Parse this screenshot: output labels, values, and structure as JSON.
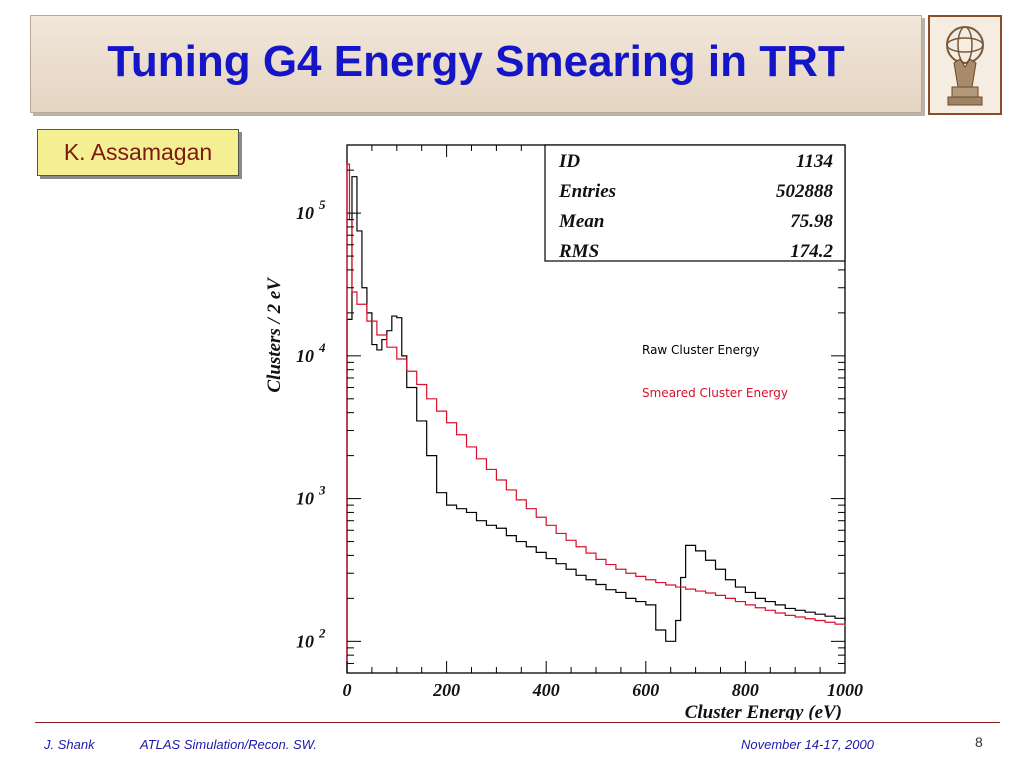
{
  "slide": {
    "title": "Tuning G4 Energy Smearing in TRT",
    "author": "K. Assamagan",
    "footer_left": "J. Shank",
    "footer_course": "ATLAS Simulation/Recon. SW.",
    "footer_date": "November  14-17, 2000",
    "page_number": "8",
    "logo_icon": "atlas-globe-logo"
  },
  "chart_data": {
    "type": "line",
    "title": "",
    "xlabel": "Cluster Energy (eV)",
    "ylabel": "Clusters / 2 eV",
    "xlim": [
      0,
      1000
    ],
    "ylim": [
      60,
      300000
    ],
    "y_scale": "log",
    "x_ticks": [
      "0",
      "200",
      "400",
      "600",
      "800",
      "1000"
    ],
    "y_ticks": [
      {
        "base": "10",
        "exp": "2",
        "value": 100
      },
      {
        "base": "10",
        "exp": "3",
        "value": 1000
      },
      {
        "base": "10",
        "exp": "4",
        "value": 10000
      },
      {
        "base": "10",
        "exp": "5",
        "value": 100000
      }
    ],
    "stats_box": [
      {
        "label": "ID",
        "value": "1134"
      },
      {
        "label": "Entries",
        "value": "502888"
      },
      {
        "label": "Mean",
        "value": "75.98"
      },
      {
        "label": "RMS",
        "value": "174.2"
      }
    ],
    "legend_position": "middle-right",
    "series": [
      {
        "name": "Raw Cluster Energy",
        "color": "#000000",
        "points": [
          [
            0,
            18000
          ],
          [
            10,
            180000
          ],
          [
            20,
            75000
          ],
          [
            30,
            30000
          ],
          [
            40,
            20000
          ],
          [
            50,
            12000
          ],
          [
            60,
            11000
          ],
          [
            70,
            13000
          ],
          [
            80,
            15000
          ],
          [
            90,
            19000
          ],
          [
            100,
            18500
          ],
          [
            110,
            10000
          ],
          [
            120,
            6000
          ],
          [
            140,
            3500
          ],
          [
            160,
            2000
          ],
          [
            180,
            1100
          ],
          [
            200,
            900
          ],
          [
            220,
            850
          ],
          [
            240,
            800
          ],
          [
            260,
            700
          ],
          [
            280,
            650
          ],
          [
            300,
            620
          ],
          [
            320,
            550
          ],
          [
            340,
            500
          ],
          [
            360,
            460
          ],
          [
            380,
            420
          ],
          [
            400,
            380
          ],
          [
            420,
            350
          ],
          [
            440,
            320
          ],
          [
            460,
            290
          ],
          [
            480,
            270
          ],
          [
            500,
            250
          ],
          [
            520,
            230
          ],
          [
            540,
            220
          ],
          [
            560,
            200
          ],
          [
            580,
            190
          ],
          [
            600,
            180
          ],
          [
            620,
            120
          ],
          [
            640,
            100
          ],
          [
            660,
            140
          ],
          [
            670,
            280
          ],
          [
            680,
            470
          ],
          [
            700,
            430
          ],
          [
            720,
            370
          ],
          [
            740,
            320
          ],
          [
            760,
            270
          ],
          [
            780,
            240
          ],
          [
            800,
            220
          ],
          [
            820,
            200
          ],
          [
            840,
            190
          ],
          [
            860,
            180
          ],
          [
            880,
            170
          ],
          [
            900,
            165
          ],
          [
            920,
            160
          ],
          [
            940,
            155
          ],
          [
            960,
            150
          ],
          [
            980,
            145
          ],
          [
            1000,
            140
          ]
        ]
      },
      {
        "name": "Smeared Cluster Energy",
        "color": "#d8102c",
        "points": [
          [
            0,
            220000
          ],
          [
            5,
            90000
          ],
          [
            10,
            28000
          ],
          [
            20,
            23000
          ],
          [
            40,
            17500
          ],
          [
            60,
            14000
          ],
          [
            80,
            11500
          ],
          [
            100,
            9500
          ],
          [
            120,
            7800
          ],
          [
            140,
            6300
          ],
          [
            160,
            5000
          ],
          [
            180,
            4100
          ],
          [
            200,
            3400
          ],
          [
            220,
            2800
          ],
          [
            240,
            2300
          ],
          [
            260,
            1900
          ],
          [
            280,
            1600
          ],
          [
            300,
            1350
          ],
          [
            320,
            1150
          ],
          [
            340,
            980
          ],
          [
            360,
            850
          ],
          [
            380,
            740
          ],
          [
            400,
            650
          ],
          [
            420,
            570
          ],
          [
            440,
            510
          ],
          [
            460,
            460
          ],
          [
            480,
            415
          ],
          [
            500,
            375
          ],
          [
            520,
            345
          ],
          [
            540,
            320
          ],
          [
            560,
            300
          ],
          [
            580,
            285
          ],
          [
            600,
            270
          ],
          [
            620,
            258
          ],
          [
            640,
            248
          ],
          [
            660,
            240
          ],
          [
            680,
            232
          ],
          [
            700,
            225
          ],
          [
            720,
            218
          ],
          [
            740,
            210
          ],
          [
            760,
            200
          ],
          [
            780,
            190
          ],
          [
            800,
            180
          ],
          [
            820,
            172
          ],
          [
            840,
            165
          ],
          [
            860,
            158
          ],
          [
            880,
            152
          ],
          [
            900,
            148
          ],
          [
            920,
            144
          ],
          [
            940,
            140
          ],
          [
            960,
            136
          ],
          [
            980,
            132
          ],
          [
            1000,
            128
          ]
        ]
      }
    ]
  }
}
